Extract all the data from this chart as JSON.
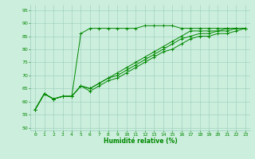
{
  "xlabel": "Humidité relative (%)",
  "ylabel": "",
  "xlim": [
    -0.5,
    23.5
  ],
  "ylim": [
    49,
    97
  ],
  "xticks": [
    0,
    1,
    2,
    3,
    4,
    5,
    6,
    7,
    8,
    9,
    10,
    11,
    12,
    13,
    14,
    15,
    16,
    17,
    18,
    19,
    20,
    21,
    22,
    23
  ],
  "yticks": [
    50,
    55,
    60,
    65,
    70,
    75,
    80,
    85,
    90,
    95
  ],
  "bg_color": "#cceedd",
  "grid_color": "#99ccbb",
  "line_color": "#008800",
  "curves": [
    [
      57,
      63,
      61,
      62,
      62,
      86,
      88,
      88,
      88,
      88,
      88,
      88,
      89,
      89,
      89,
      89,
      88,
      88,
      88,
      88,
      88,
      88,
      88,
      88
    ],
    [
      57,
      63,
      61,
      62,
      62,
      66,
      65,
      67,
      69,
      71,
      73,
      75,
      77,
      79,
      81,
      83,
      85,
      87,
      87,
      87,
      87,
      88,
      88,
      88
    ],
    [
      57,
      63,
      61,
      62,
      62,
      66,
      65,
      67,
      69,
      70,
      72,
      74,
      76,
      78,
      80,
      82,
      84,
      85,
      86,
      86,
      87,
      87,
      88,
      88
    ],
    [
      57,
      63,
      61,
      62,
      62,
      66,
      64,
      66,
      68,
      69,
      71,
      73,
      75,
      77,
      79,
      80,
      82,
      84,
      85,
      85,
      86,
      86,
      87,
      88
    ]
  ]
}
